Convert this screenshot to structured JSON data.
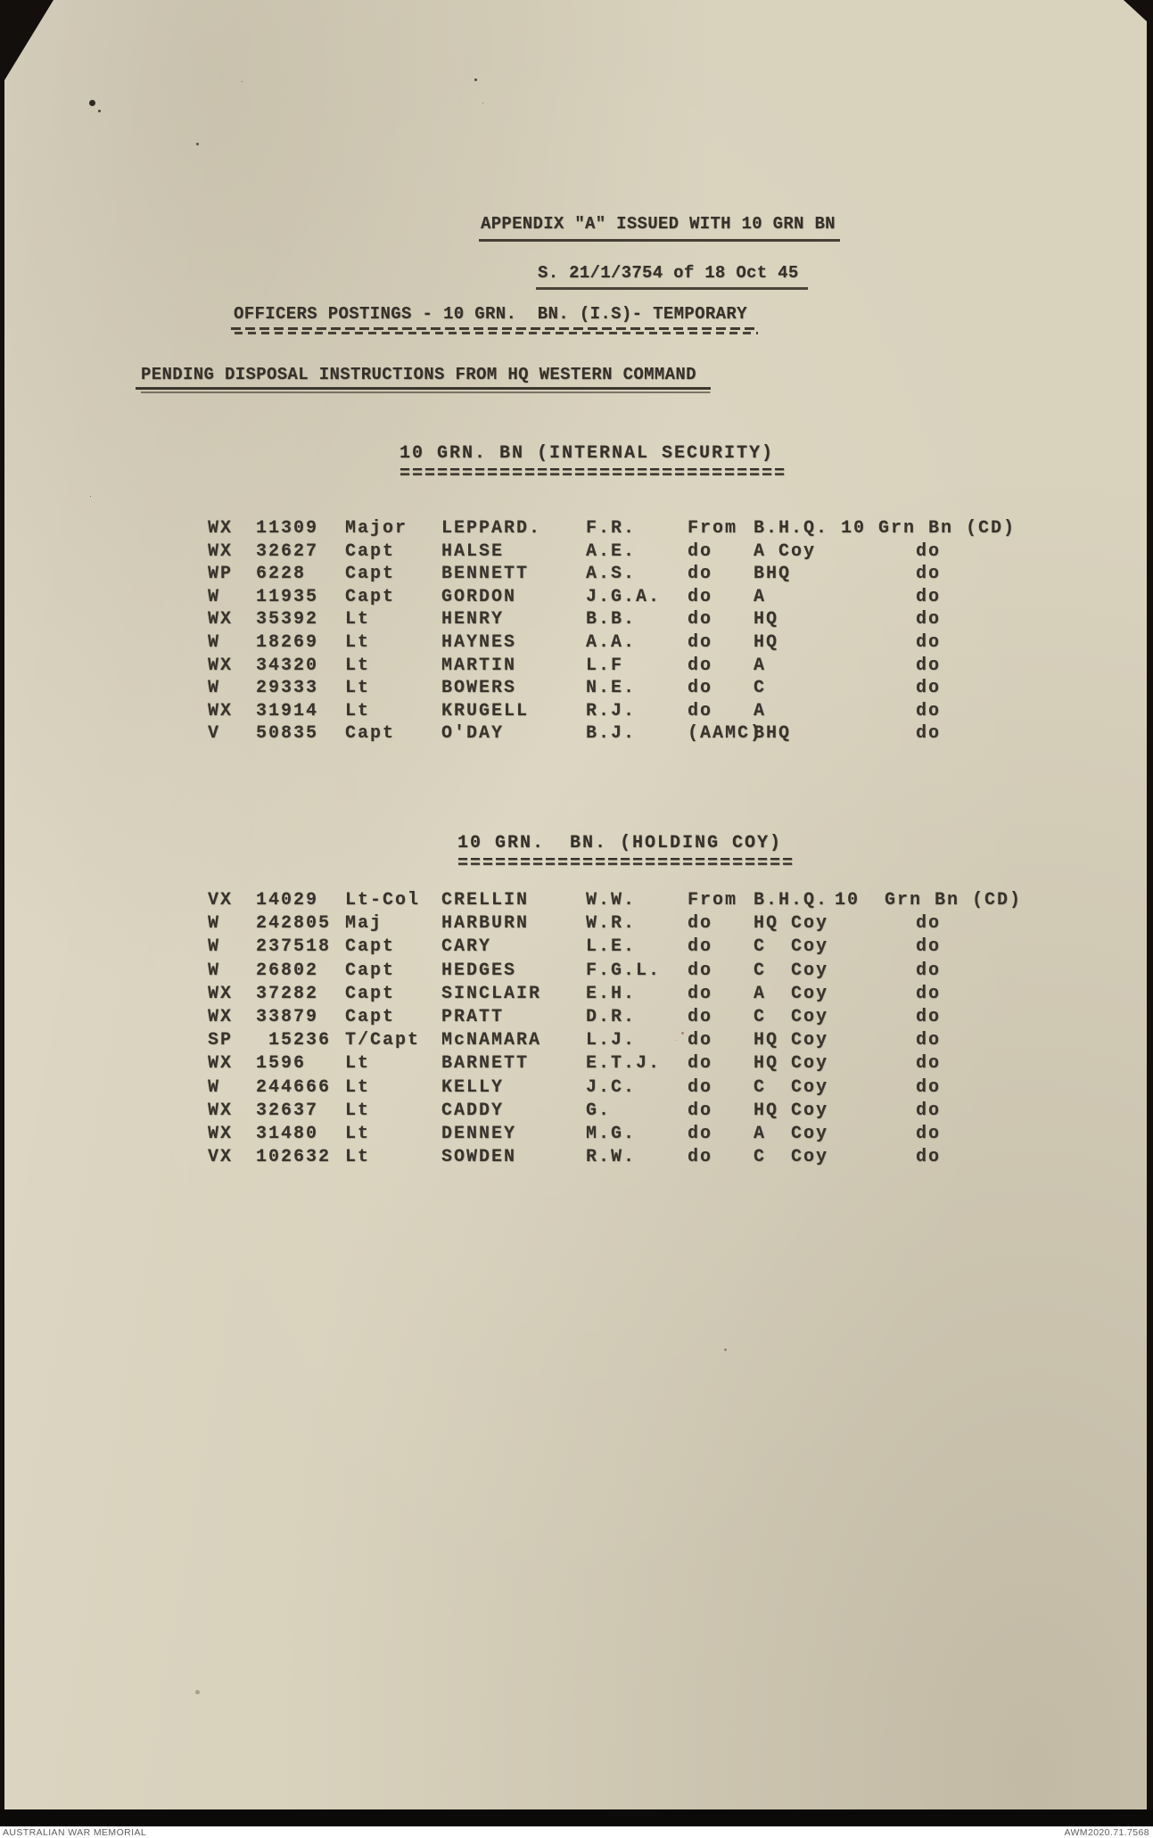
{
  "document": {
    "appendix_line": "APPENDIX \"A\" ISSUED WITH 10 GRN BN",
    "reference_line": "S. 21/1/3754 of 18 Oct 45",
    "title_line": "OFFICERS POSTINGS - 10 GRN.  BN. (I.S)- TEMPORARY",
    "subtitle_line": "PENDING DISPOSAL INSTRUCTIONS FROM HQ WESTERN COMMAND",
    "sections": [
      {
        "heading": "10 GRN. BN (INTERNAL SECURITY)",
        "heading_underline": "===============================",
        "rows": [
          {
            "prefix": "WX",
            "number": "11309",
            "rank": "Major",
            "surname": "LEPPARD.",
            "initials": "F.R.",
            "from": "From",
            "unit": "B.H.Q.",
            "to": "10 Grn Bn (CD)"
          },
          {
            "prefix": "WX",
            "number": "32627",
            "rank": "Capt",
            "surname": "HALSE",
            "initials": "A.E.",
            "from": "do",
            "unit": "A Coy",
            "to": "do"
          },
          {
            "prefix": "WP",
            "number": "6228",
            "rank": "Capt",
            "surname": "BENNETT",
            "initials": "A.S.",
            "from": "do",
            "unit": "BHQ",
            "to": "do"
          },
          {
            "prefix": "W",
            "number": "11935",
            "rank": "Capt",
            "surname": "GORDON",
            "initials": "J.G.A.",
            "from": "do",
            "unit": "A",
            "to": "do"
          },
          {
            "prefix": "WX",
            "number": "35392",
            "rank": "Lt",
            "surname": "HENRY",
            "initials": "B.B.",
            "from": "do",
            "unit": "HQ",
            "to": "do"
          },
          {
            "prefix": "W",
            "number": "18269",
            "rank": "Lt",
            "surname": "HAYNES",
            "initials": "A.A.",
            "from": "do",
            "unit": "HQ",
            "to": "do"
          },
          {
            "prefix": "WX",
            "number": "34320",
            "rank": "Lt",
            "surname": "MARTIN",
            "initials": "L.F",
            "from": "do",
            "unit": "A",
            "to": "do"
          },
          {
            "prefix": "W",
            "number": "29333",
            "rank": "Lt",
            "surname": "BOWERS",
            "initials": "N.E.",
            "from": "do",
            "unit": "C",
            "to": "do"
          },
          {
            "prefix": "WX",
            "number": "31914",
            "rank": "Lt",
            "surname": "KRUGELL",
            "initials": "R.J.",
            "from": "do",
            "unit": "A",
            "to": "do"
          },
          {
            "prefix": "V",
            "number": "50835",
            "rank": "Capt",
            "surname": "O'DAY",
            "initials": "B.J.",
            "from": "(AAMC)",
            "unit": "BHQ",
            "to": "do"
          }
        ]
      },
      {
        "heading": "10 GRN.  BN. (HOLDING COY)",
        "heading_underline": "===========================",
        "rows": [
          {
            "prefix": "VX",
            "number": "14029",
            "rank": "Lt-Col",
            "surname": "CRELLIN",
            "initials": "W.W.",
            "from": "From",
            "unit": "B.H.Q.",
            "to": "10  Grn Bn (CD)"
          },
          {
            "prefix": "W",
            "number": "242805",
            "rank": "Maj",
            "surname": "HARBURN",
            "initials": "W.R.",
            "from": "do",
            "unit": "HQ Coy",
            "to": "do"
          },
          {
            "prefix": "W",
            "number": "237518",
            "rank": "Capt",
            "surname": "CARY",
            "initials": "L.E.",
            "from": "do",
            "unit": "C  Coy",
            "to": "do"
          },
          {
            "prefix": "W",
            "number": "26802",
            "rank": "Capt",
            "surname": "HEDGES",
            "initials": "F.G.L.",
            "from": "do",
            "unit": "C  Coy",
            "to": "do"
          },
          {
            "prefix": "WX",
            "number": "37282",
            "rank": "Capt",
            "surname": "SINCLAIR",
            "initials": "E.H.",
            "from": "do",
            "unit": "A  Coy",
            "to": "do"
          },
          {
            "prefix": "WX",
            "number": "33879",
            "rank": "Capt",
            "surname": "PRATT",
            "initials": "D.R.",
            "from": "do",
            "unit": "C  Coy",
            "to": "do"
          },
          {
            "prefix": "SP",
            "number": " 15236",
            "rank": "T/Capt",
            "surname": "McNAMARA",
            "initials": "L.J.",
            "from": "do",
            "unit": "HQ Coy",
            "to": "do"
          },
          {
            "prefix": "WX",
            "number": "1596",
            "rank": "Lt",
            "surname": "BARNETT",
            "initials": "E.T.J.",
            "from": "do",
            "unit": "HQ Coy",
            "to": "do"
          },
          {
            "prefix": "W",
            "number": "244666",
            "rank": "Lt",
            "surname": "KELLY",
            "initials": "J.C.",
            "from": "do",
            "unit": "C  Coy",
            "to": "do"
          },
          {
            "prefix": "WX",
            "number": "32637",
            "rank": "Lt",
            "surname": "CADDY",
            "initials": "G.",
            "from": "do",
            "unit": "HQ Coy",
            "to": "do"
          },
          {
            "prefix": "WX",
            "number": "31480",
            "rank": "Lt",
            "surname": "DENNEY",
            "initials": "M.G.",
            "from": "do",
            "unit": "A  Coy",
            "to": "do"
          },
          {
            "prefix": "VX",
            "number": "102632",
            "rank": "Lt",
            "surname": "SOWDEN",
            "initials": "R.W.",
            "from": "do",
            "unit": "C  Coy",
            "to": "do"
          }
        ]
      }
    ]
  },
  "footer": {
    "left": "AUSTRALIAN WAR MEMORIAL",
    "right": "AWM2020.71.7568"
  }
}
